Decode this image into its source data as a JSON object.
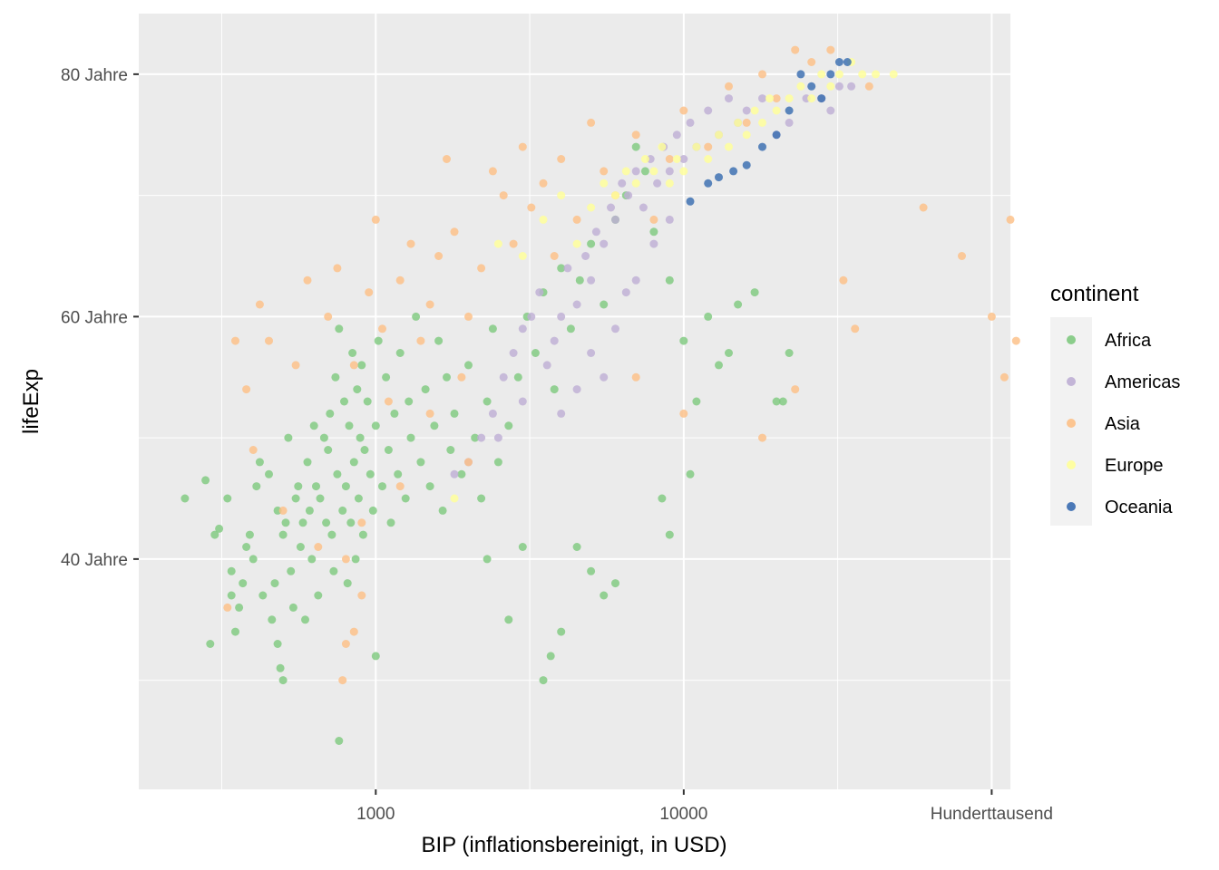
{
  "chart_data": {
    "type": "scatter",
    "xlabel": "BIP (inflationsbereinigt, in USD)",
    "ylabel": "lifeExp",
    "x_scale": "log10",
    "xlim": [
      170,
      115000
    ],
    "ylim": [
      21,
      85
    ],
    "x_ticks": [
      {
        "value": 1000,
        "label": "1000"
      },
      {
        "value": 10000,
        "label": "10000"
      },
      {
        "value": 100000,
        "label": "Hunderttausend"
      }
    ],
    "y_ticks": [
      {
        "value": 40,
        "label": "40 Jahre"
      },
      {
        "value": 60,
        "label": "60 Jahre"
      },
      {
        "value": 80,
        "label": "80 Jahre"
      }
    ],
    "grid": true,
    "legend": {
      "title": "continent",
      "position": "right"
    },
    "series": [
      {
        "name": "Africa",
        "color": "#7fc97f",
        "points": [
          [
            240,
            45
          ],
          [
            280,
            46.5
          ],
          [
            290,
            33
          ],
          [
            300,
            42
          ],
          [
            310,
            42.5
          ],
          [
            330,
            45
          ],
          [
            340,
            39
          ],
          [
            340,
            37
          ],
          [
            350,
            34
          ],
          [
            360,
            36
          ],
          [
            370,
            38
          ],
          [
            380,
            41
          ],
          [
            390,
            42
          ],
          [
            400,
            40
          ],
          [
            410,
            46
          ],
          [
            420,
            48
          ],
          [
            430,
            37
          ],
          [
            450,
            47
          ],
          [
            460,
            35
          ],
          [
            470,
            38
          ],
          [
            480,
            33
          ],
          [
            480,
            44
          ],
          [
            490,
            31
          ],
          [
            500,
            30
          ],
          [
            500,
            42
          ],
          [
            510,
            43
          ],
          [
            520,
            50
          ],
          [
            530,
            39
          ],
          [
            540,
            36
          ],
          [
            550,
            45
          ],
          [
            560,
            46
          ],
          [
            570,
            41
          ],
          [
            580,
            43
          ],
          [
            590,
            35
          ],
          [
            600,
            48
          ],
          [
            610,
            44
          ],
          [
            620,
            40
          ],
          [
            630,
            51
          ],
          [
            640,
            46
          ],
          [
            650,
            37
          ],
          [
            660,
            45
          ],
          [
            680,
            50
          ],
          [
            690,
            43
          ],
          [
            700,
            49
          ],
          [
            710,
            52
          ],
          [
            720,
            42
          ],
          [
            730,
            39
          ],
          [
            740,
            55
          ],
          [
            750,
            47
          ],
          [
            760,
            59
          ],
          [
            780,
            44
          ],
          [
            790,
            53
          ],
          [
            800,
            46
          ],
          [
            810,
            38
          ],
          [
            820,
            51
          ],
          [
            830,
            43
          ],
          [
            840,
            57
          ],
          [
            850,
            48
          ],
          [
            860,
            40
          ],
          [
            870,
            54
          ],
          [
            880,
            45
          ],
          [
            890,
            50
          ],
          [
            900,
            56
          ],
          [
            910,
            42
          ],
          [
            920,
            49
          ],
          [
            940,
            53
          ],
          [
            960,
            47
          ],
          [
            980,
            44
          ],
          [
            1000,
            51
          ],
          [
            1020,
            58
          ],
          [
            1050,
            46
          ],
          [
            1080,
            55
          ],
          [
            1100,
            49
          ],
          [
            1120,
            43
          ],
          [
            1150,
            52
          ],
          [
            1180,
            47
          ],
          [
            1200,
            57
          ],
          [
            1250,
            45
          ],
          [
            1280,
            53
          ],
          [
            1300,
            50
          ],
          [
            1350,
            60
          ],
          [
            1400,
            48
          ],
          [
            1450,
            54
          ],
          [
            1500,
            46
          ],
          [
            1550,
            51
          ],
          [
            1600,
            58
          ],
          [
            1650,
            44
          ],
          [
            1700,
            55
          ],
          [
            1750,
            49
          ],
          [
            1800,
            52
          ],
          [
            1900,
            47
          ],
          [
            2000,
            56
          ],
          [
            2100,
            50
          ],
          [
            2200,
            45
          ],
          [
            2300,
            53
          ],
          [
            2400,
            59
          ],
          [
            2500,
            48
          ],
          [
            2700,
            51
          ],
          [
            2900,
            55
          ],
          [
            3100,
            60
          ],
          [
            3300,
            57
          ],
          [
            3500,
            62
          ],
          [
            3800,
            54
          ],
          [
            4000,
            64
          ],
          [
            4300,
            59
          ],
          [
            4600,
            63
          ],
          [
            5000,
            66
          ],
          [
            5500,
            61
          ],
          [
            6000,
            68
          ],
          [
            6500,
            70
          ],
          [
            7000,
            74
          ],
          [
            7500,
            72
          ],
          [
            8000,
            67
          ],
          [
            9000,
            63
          ],
          [
            10000,
            58
          ],
          [
            11000,
            53
          ],
          [
            12000,
            60
          ],
          [
            13000,
            56
          ],
          [
            15000,
            61
          ],
          [
            17000,
            62
          ],
          [
            20000,
            53
          ],
          [
            21000,
            53
          ],
          [
            22000,
            57
          ],
          [
            760,
            25
          ],
          [
            1000,
            32
          ],
          [
            3500,
            30
          ],
          [
            2700,
            35
          ],
          [
            4000,
            34
          ],
          [
            3700,
            32
          ],
          [
            5000,
            39
          ],
          [
            5500,
            37
          ],
          [
            6000,
            38
          ],
          [
            4500,
            41
          ],
          [
            3000,
            41
          ],
          [
            2300,
            40
          ],
          [
            14000,
            57
          ],
          [
            10500,
            47
          ],
          [
            9000,
            42
          ],
          [
            8500,
            45
          ]
        ]
      },
      {
        "name": "Americas",
        "color": "#beaed4",
        "points": [
          [
            1800,
            47
          ],
          [
            2000,
            48
          ],
          [
            2200,
            50
          ],
          [
            2400,
            52
          ],
          [
            2600,
            55
          ],
          [
            2800,
            57
          ],
          [
            3000,
            59
          ],
          [
            3200,
            60
          ],
          [
            3400,
            62
          ],
          [
            3600,
            56
          ],
          [
            3800,
            58
          ],
          [
            4000,
            60
          ],
          [
            4200,
            64
          ],
          [
            4500,
            61
          ],
          [
            4800,
            65
          ],
          [
            5000,
            63
          ],
          [
            5200,
            67
          ],
          [
            5500,
            66
          ],
          [
            5800,
            69
          ],
          [
            6000,
            68
          ],
          [
            6300,
            71
          ],
          [
            6600,
            70
          ],
          [
            7000,
            72
          ],
          [
            7400,
            69
          ],
          [
            7800,
            73
          ],
          [
            8200,
            71
          ],
          [
            8600,
            74
          ],
          [
            9000,
            72
          ],
          [
            9500,
            75
          ],
          [
            10000,
            73
          ],
          [
            10500,
            76
          ],
          [
            11000,
            74
          ],
          [
            12000,
            77
          ],
          [
            13000,
            75
          ],
          [
            14000,
            78
          ],
          [
            15000,
            76
          ],
          [
            16000,
            77
          ],
          [
            18000,
            78
          ],
          [
            20000,
            75
          ],
          [
            22000,
            76
          ],
          [
            25000,
            78
          ],
          [
            28000,
            78
          ],
          [
            30000,
            77
          ],
          [
            32000,
            79
          ],
          [
            35000,
            79
          ],
          [
            5000,
            57
          ],
          [
            5500,
            55
          ],
          [
            6000,
            59
          ],
          [
            7000,
            63
          ],
          [
            8000,
            66
          ],
          [
            9000,
            68
          ],
          [
            3000,
            53
          ],
          [
            2500,
            50
          ],
          [
            4000,
            52
          ],
          [
            4500,
            54
          ],
          [
            6500,
            62
          ]
        ]
      },
      {
        "name": "Asia",
        "color": "#fdc086",
        "points": [
          [
            330,
            36
          ],
          [
            350,
            58
          ],
          [
            380,
            54
          ],
          [
            400,
            49
          ],
          [
            420,
            61
          ],
          [
            450,
            58
          ],
          [
            500,
            44
          ],
          [
            550,
            56
          ],
          [
            600,
            63
          ],
          [
            650,
            41
          ],
          [
            700,
            60
          ],
          [
            750,
            64
          ],
          [
            780,
            30
          ],
          [
            800,
            33
          ],
          [
            850,
            56
          ],
          [
            900,
            43
          ],
          [
            950,
            62
          ],
          [
            1000,
            68
          ],
          [
            1050,
            59
          ],
          [
            1100,
            53
          ],
          [
            1200,
            63
          ],
          [
            1300,
            66
          ],
          [
            1400,
            58
          ],
          [
            1500,
            61
          ],
          [
            1600,
            65
          ],
          [
            1700,
            73
          ],
          [
            1800,
            67
          ],
          [
            1900,
            55
          ],
          [
            2000,
            60
          ],
          [
            2200,
            64
          ],
          [
            2400,
            72
          ],
          [
            2600,
            70
          ],
          [
            2800,
            66
          ],
          [
            3000,
            74
          ],
          [
            3200,
            69
          ],
          [
            3500,
            71
          ],
          [
            3800,
            65
          ],
          [
            4000,
            73
          ],
          [
            4500,
            68
          ],
          [
            5000,
            76
          ],
          [
            5500,
            72
          ],
          [
            6000,
            70
          ],
          [
            7000,
            75
          ],
          [
            8000,
            68
          ],
          [
            9000,
            73
          ],
          [
            10000,
            77
          ],
          [
            12000,
            74
          ],
          [
            14000,
            79
          ],
          [
            16000,
            76
          ],
          [
            18000,
            80
          ],
          [
            20000,
            78
          ],
          [
            23000,
            82
          ],
          [
            26000,
            81
          ],
          [
            30000,
            82
          ],
          [
            33000,
            63
          ],
          [
            36000,
            59
          ],
          [
            40000,
            79
          ],
          [
            60000,
            69
          ],
          [
            80000,
            65
          ],
          [
            100000,
            60
          ],
          [
            110000,
            55
          ],
          [
            115000,
            68
          ],
          [
            120000,
            58
          ],
          [
            18000,
            50
          ],
          [
            23000,
            54
          ],
          [
            2000,
            48
          ],
          [
            1500,
            52
          ],
          [
            1200,
            46
          ],
          [
            850,
            34
          ],
          [
            900,
            37
          ],
          [
            800,
            40
          ],
          [
            7000,
            55
          ],
          [
            10000,
            52
          ]
        ]
      },
      {
        "name": "Europe",
        "color": "#ffff99",
        "points": [
          [
            1800,
            45
          ],
          [
            2500,
            66
          ],
          [
            3000,
            65
          ],
          [
            3500,
            68
          ],
          [
            4000,
            70
          ],
          [
            4500,
            66
          ],
          [
            5000,
            69
          ],
          [
            5500,
            71
          ],
          [
            6000,
            70
          ],
          [
            6500,
            72
          ],
          [
            7000,
            71
          ],
          [
            7500,
            73
          ],
          [
            8000,
            72
          ],
          [
            8500,
            74
          ],
          [
            9000,
            71
          ],
          [
            9500,
            73
          ],
          [
            10000,
            72
          ],
          [
            11000,
            74
          ],
          [
            12000,
            73
          ],
          [
            13000,
            75
          ],
          [
            14000,
            74
          ],
          [
            15000,
            76
          ],
          [
            16000,
            75
          ],
          [
            17000,
            77
          ],
          [
            18000,
            76
          ],
          [
            19000,
            78
          ],
          [
            20000,
            77
          ],
          [
            22000,
            78
          ],
          [
            24000,
            79
          ],
          [
            26000,
            78
          ],
          [
            28000,
            80
          ],
          [
            30000,
            79
          ],
          [
            32000,
            80
          ],
          [
            35000,
            81
          ],
          [
            38000,
            80
          ],
          [
            42000,
            80
          ],
          [
            48000,
            80
          ]
        ]
      },
      {
        "name": "Oceania",
        "color": "#386cb0",
        "points": [
          [
            10500,
            69.5
          ],
          [
            12000,
            71
          ],
          [
            13000,
            71.5
          ],
          [
            14500,
            72
          ],
          [
            16000,
            72.5
          ],
          [
            18000,
            74
          ],
          [
            20000,
            75
          ],
          [
            22000,
            77
          ],
          [
            24000,
            80
          ],
          [
            26000,
            79
          ],
          [
            28000,
            78
          ],
          [
            30000,
            80
          ],
          [
            32000,
            81
          ],
          [
            34000,
            81
          ]
        ]
      }
    ]
  }
}
